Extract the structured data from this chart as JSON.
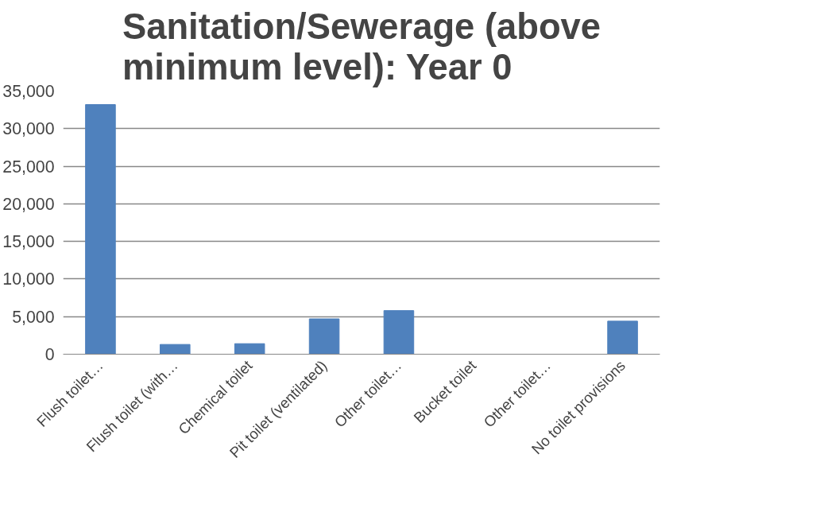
{
  "chart_data": {
    "type": "bar",
    "title": "Sanitation/Sewerage (above\nminimum level): Year 0",
    "categories": [
      "Flush toilet…",
      "Flush toilet (with…",
      "Chemical toilet",
      "Pit toilet (ventilated)",
      "Other toilet…",
      "Bucket toilet",
      "Other toilet…",
      "No toilet provisions"
    ],
    "values": [
      33200,
      1300,
      1400,
      4700,
      5800,
      0,
      0,
      4400
    ],
    "color": "#4f81bd",
    "ylim": [
      0,
      35000
    ],
    "yticks": [
      {
        "value": 0,
        "label": "0"
      },
      {
        "value": 5000,
        "label": "5,000"
      },
      {
        "value": 10000,
        "label": "10,000"
      },
      {
        "value": 15000,
        "label": "15,000"
      },
      {
        "value": 20000,
        "label": "20,000"
      },
      {
        "value": 25000,
        "label": "25,000"
      },
      {
        "value": 30000,
        "label": "30,000"
      },
      {
        "value": 35000,
        "label": "35,000"
      }
    ],
    "grid": "y"
  }
}
